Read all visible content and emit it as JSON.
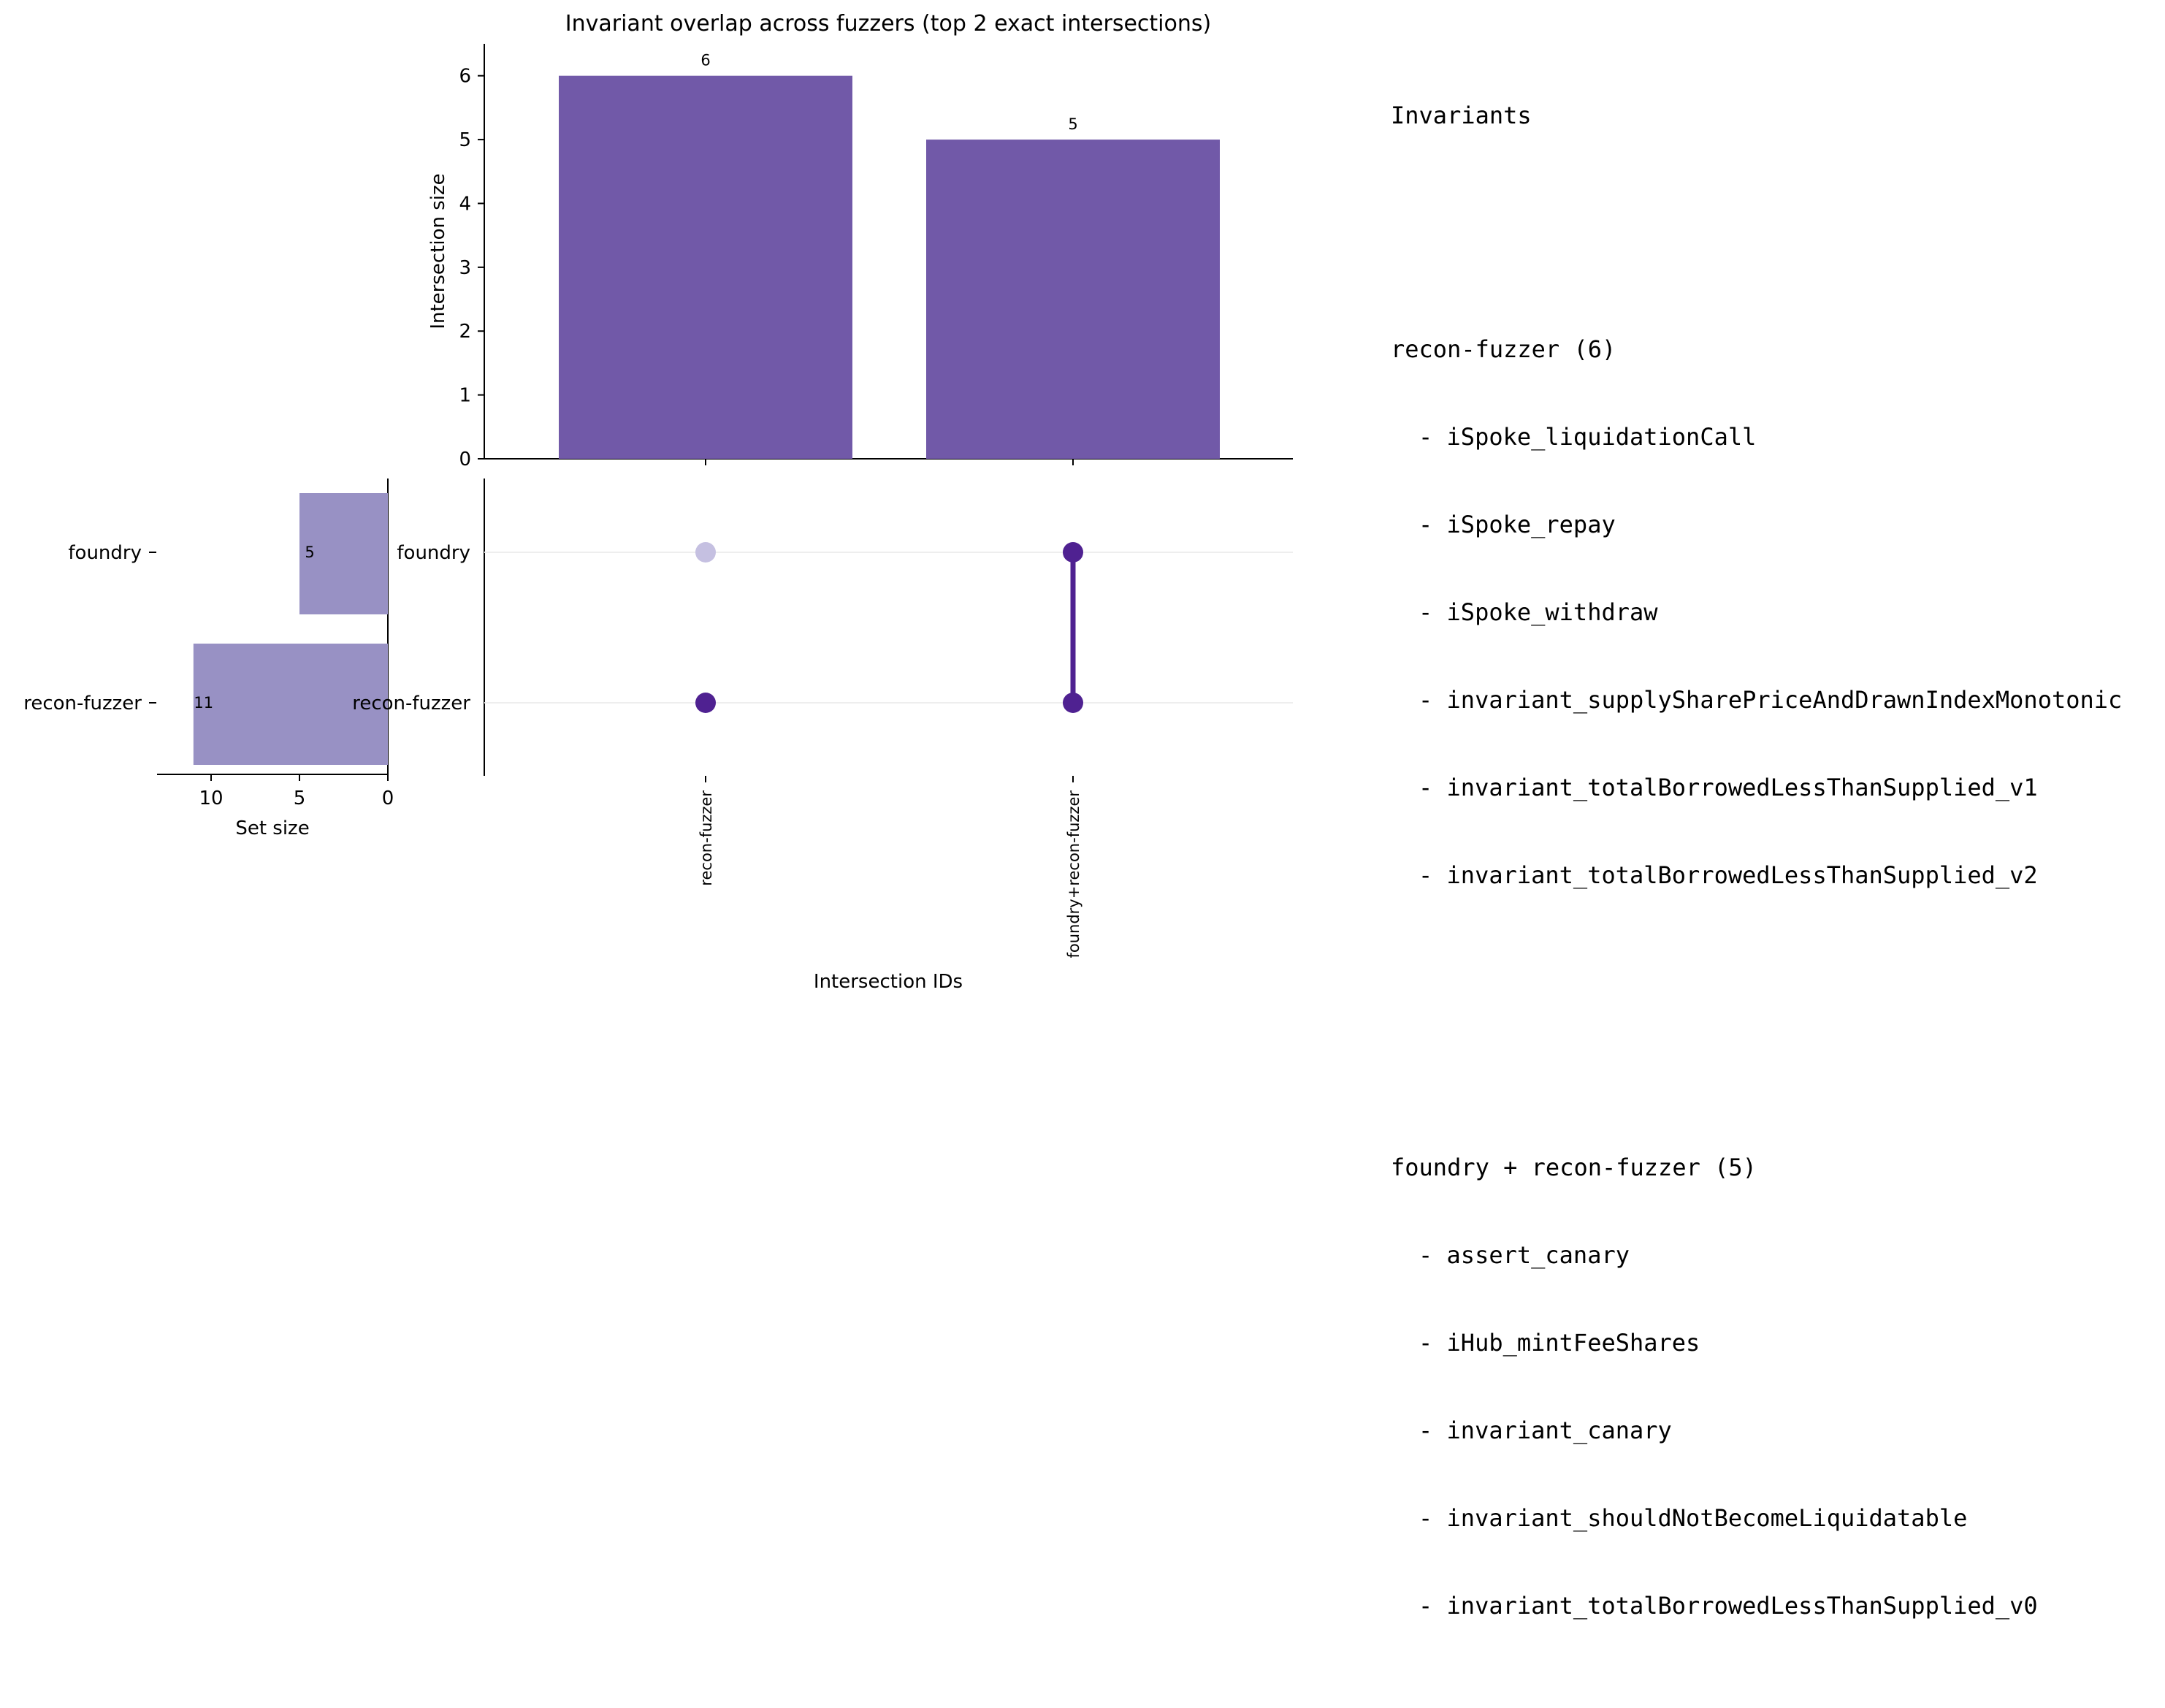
{
  "chart_data": {
    "type": "bar",
    "title": "Invariant overlap across fuzzers (top 2 exact intersections)",
    "intersections": {
      "categories": [
        "recon-fuzzer",
        "foundry+recon-fuzzer"
      ],
      "values": [
        6,
        5
      ],
      "ylabel": "Intersection size",
      "xlabel": "Intersection IDs",
      "ylim": [
        0,
        6.5
      ],
      "yticks": [
        0,
        1,
        2,
        3,
        4,
        5,
        6
      ],
      "color": "#7159a8"
    },
    "sets": {
      "names": [
        "foundry",
        "recon-fuzzer"
      ],
      "values": [
        5,
        11
      ],
      "xlabel": "Set size",
      "xticks": [
        10,
        5,
        0
      ],
      "xlim": [
        14,
        0
      ],
      "color": "#9891c4"
    },
    "matrix": {
      "rows": [
        "foundry",
        "recon-fuzzer"
      ],
      "membership": [
        [
          false,
          true
        ],
        [
          true,
          true
        ]
      ],
      "active_color": "#4f2191",
      "inactive_color": "#c5c0e1"
    }
  },
  "panel": {
    "heading": "Invariants",
    "groups": [
      {
        "title": "recon-fuzzer (6)",
        "items": [
          "- iSpoke_liquidationCall",
          "- iSpoke_repay",
          "- iSpoke_withdraw",
          "- invariant_supplySharePriceAndDrawnIndexMonotonic",
          "- invariant_totalBorrowedLessThanSupplied_v1",
          "- invariant_totalBorrowedLessThanSupplied_v2"
        ]
      },
      {
        "title": "foundry + recon-fuzzer (5)",
        "items": [
          "- assert_canary",
          "- iHub_mintFeeShares",
          "- invariant_canary",
          "- invariant_shouldNotBecomeLiquidatable",
          "- invariant_totalBorrowedLessThanSupplied_v0"
        ]
      }
    ]
  }
}
